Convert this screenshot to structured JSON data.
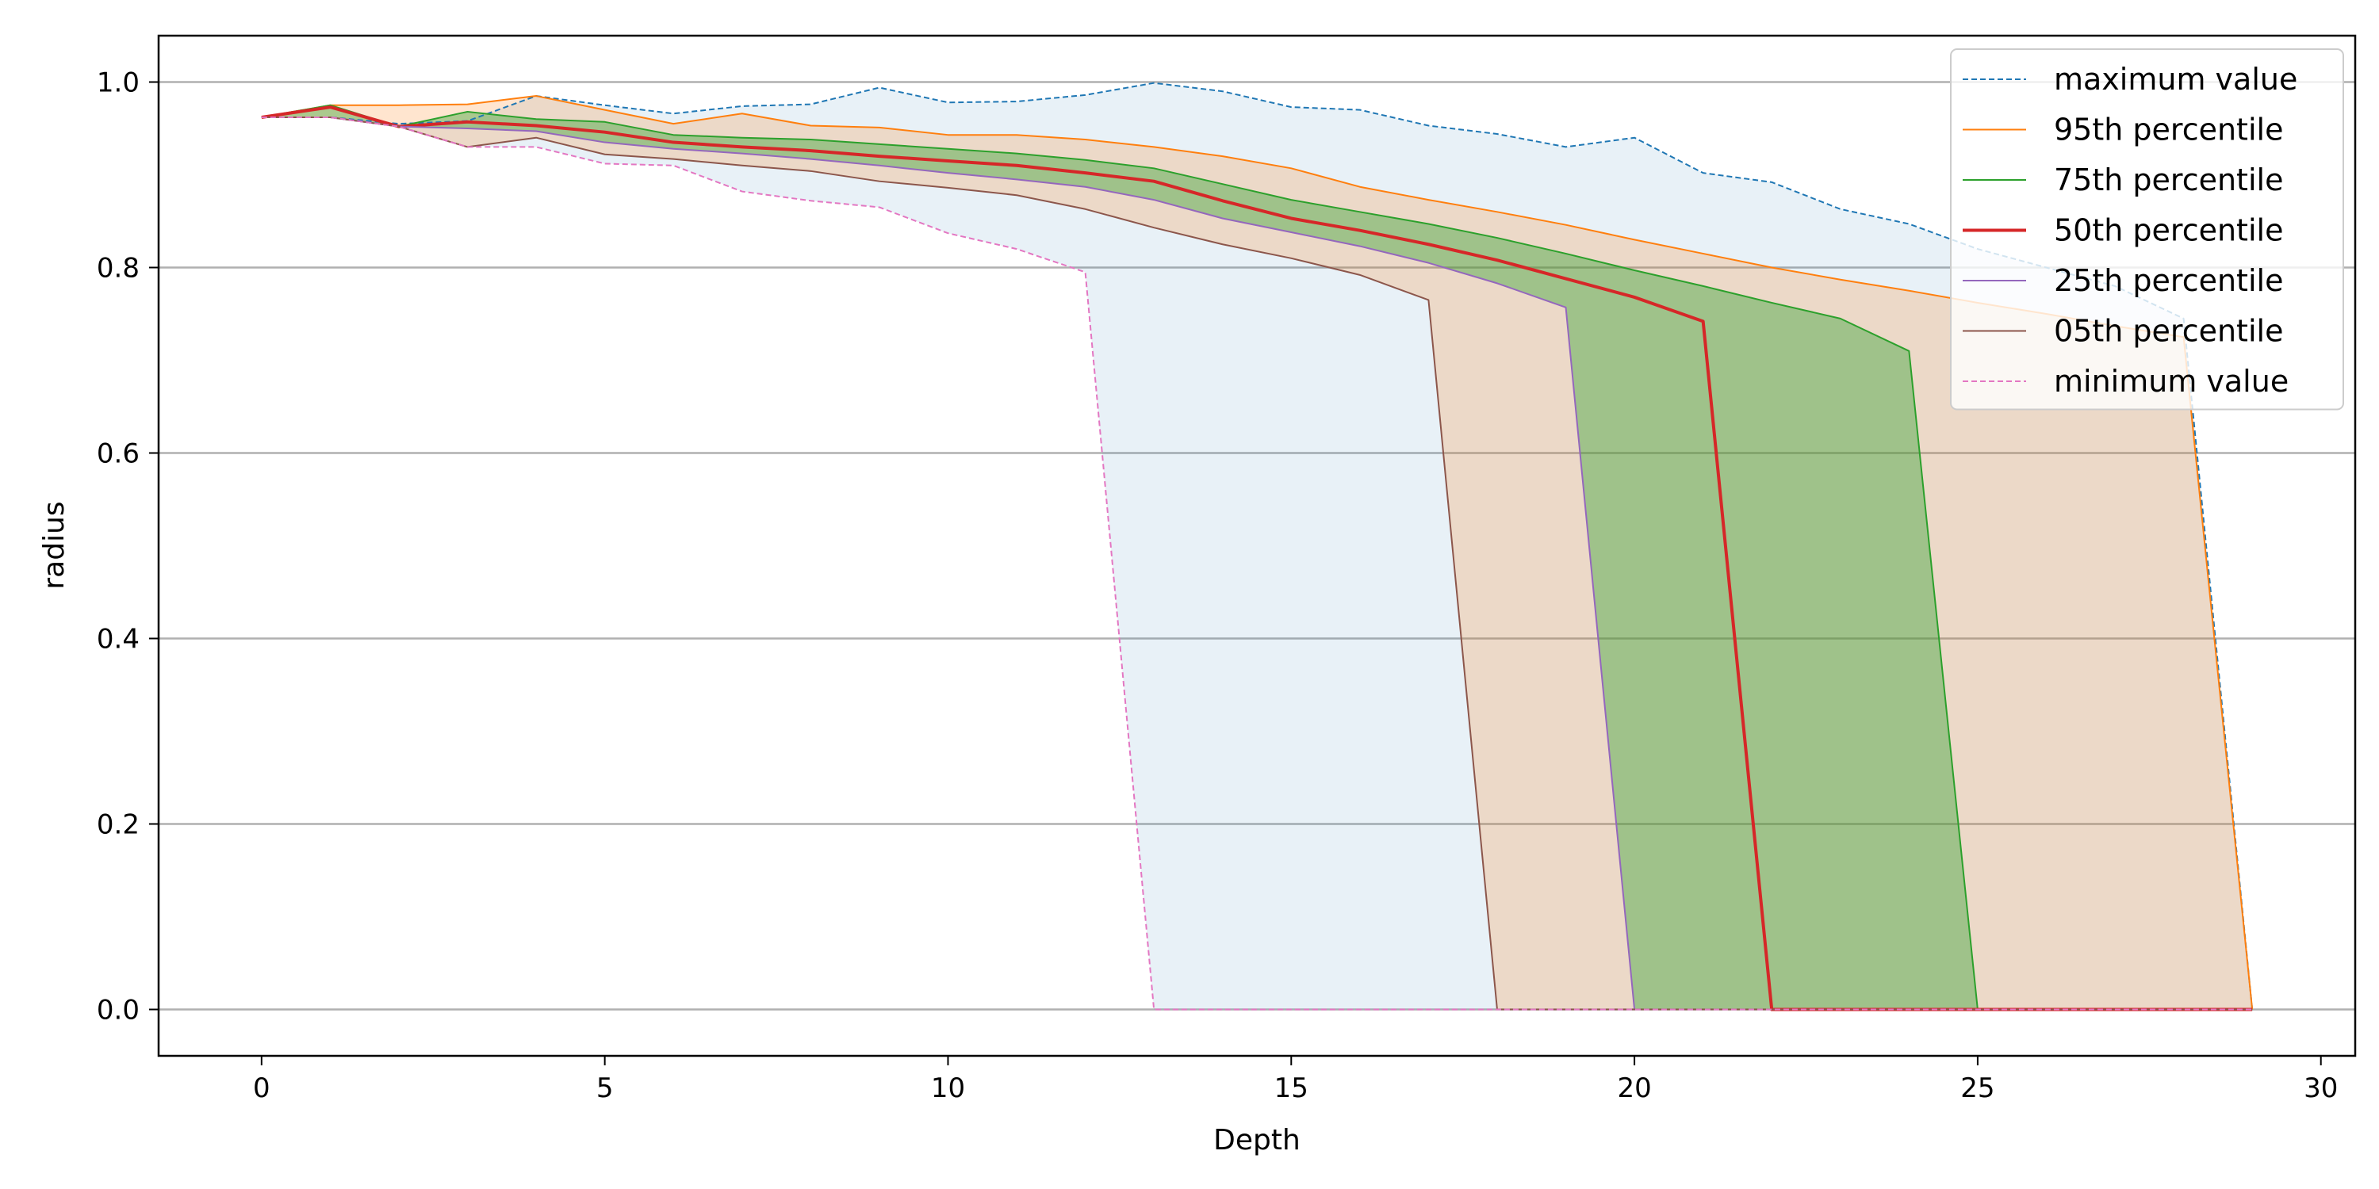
{
  "chart_data": {
    "type": "line",
    "xlabel": "Depth",
    "ylabel": "radius",
    "xlim": [
      -1.5,
      30.5
    ],
    "ylim": [
      -0.05,
      1.05
    ],
    "xticks": [
      0,
      5,
      10,
      15,
      20,
      25,
      30
    ],
    "yticks": [
      0.0,
      0.2,
      0.4,
      0.6,
      0.8,
      1.0
    ],
    "ytick_labels": [
      "0.0",
      "0.2",
      "0.4",
      "0.6",
      "0.8",
      "1.0"
    ],
    "grid": "horizontal",
    "legend_position": "top-right",
    "x": [
      0,
      1,
      2,
      3,
      4,
      5,
      6,
      7,
      8,
      9,
      10,
      11,
      12,
      13,
      14,
      15,
      16,
      17,
      18,
      19,
      20,
      21,
      22,
      23,
      24,
      25,
      26,
      27,
      28,
      29
    ],
    "series": [
      {
        "name": "maximum value",
        "color": "#1f77b4",
        "style": "dashed",
        "values": [
          0.962,
          0.962,
          0.955,
          0.958,
          0.985,
          0.975,
          0.966,
          0.974,
          0.976,
          0.994,
          0.978,
          0.979,
          0.986,
          0.999,
          0.99,
          0.973,
          0.97,
          0.953,
          0.944,
          0.93,
          0.94,
          0.902,
          0.892,
          0.863,
          0.847,
          0.82,
          0.8,
          0.78,
          0.745,
          0.0
        ]
      },
      {
        "name": "95th percentile",
        "color": "#ff7f0e",
        "style": "solid",
        "values": [
          0.962,
          0.975,
          0.975,
          0.976,
          0.985,
          0.97,
          0.955,
          0.966,
          0.953,
          0.951,
          0.943,
          0.943,
          0.938,
          0.93,
          0.92,
          0.907,
          0.887,
          0.873,
          0.86,
          0.846,
          0.83,
          0.815,
          0.8,
          0.787,
          0.775,
          0.762,
          0.75,
          0.737,
          0.725,
          0.0
        ]
      },
      {
        "name": "75th percentile",
        "color": "#2ca02c",
        "style": "solid",
        "values": [
          0.962,
          0.975,
          0.952,
          0.968,
          0.96,
          0.957,
          0.943,
          0.94,
          0.938,
          0.933,
          0.928,
          0.923,
          0.916,
          0.907,
          0.89,
          0.873,
          0.86,
          0.847,
          0.832,
          0.815,
          0.797,
          0.78,
          0.762,
          0.745,
          0.71,
          0.0,
          0.0,
          0.0,
          0.0,
          0.0
        ]
      },
      {
        "name": "50th percentile",
        "color": "#d62728",
        "style": "solid",
        "values": [
          0.962,
          0.973,
          0.952,
          0.957,
          0.953,
          0.946,
          0.935,
          0.93,
          0.926,
          0.92,
          0.915,
          0.91,
          0.902,
          0.893,
          0.872,
          0.853,
          0.84,
          0.825,
          0.808,
          0.788,
          0.768,
          0.742,
          0.0,
          0.0,
          0.0,
          0.0,
          0.0,
          0.0,
          0.0,
          0.0
        ]
      },
      {
        "name": "25th percentile",
        "color": "#9467bd",
        "style": "solid",
        "values": [
          0.962,
          0.962,
          0.952,
          0.95,
          0.947,
          0.935,
          0.928,
          0.923,
          0.917,
          0.91,
          0.902,
          0.895,
          0.887,
          0.873,
          0.853,
          0.838,
          0.823,
          0.805,
          0.783,
          0.757,
          0.0,
          0.0,
          0.0,
          0.0,
          0.0,
          0.0,
          0.0,
          0.0,
          0.0,
          0.0
        ]
      },
      {
        "name": "05th percentile",
        "color": "#8c564b",
        "style": "solid",
        "values": [
          0.962,
          0.962,
          0.952,
          0.93,
          0.94,
          0.922,
          0.917,
          0.91,
          0.904,
          0.893,
          0.886,
          0.878,
          0.863,
          0.843,
          0.825,
          0.81,
          0.792,
          0.765,
          0.0,
          0.0,
          0.0,
          0.0,
          0.0,
          0.0,
          0.0,
          0.0,
          0.0,
          0.0,
          0.0,
          0.0
        ]
      },
      {
        "name": "minimum value",
        "color": "#e377c2",
        "style": "dashed",
        "values": [
          0.962,
          0.962,
          0.952,
          0.93,
          0.93,
          0.912,
          0.91,
          0.882,
          0.872,
          0.865,
          0.837,
          0.82,
          0.795,
          0.0,
          0.0,
          0.0,
          0.0,
          0.0,
          0.0,
          0.0,
          0.0,
          0.0,
          0.0,
          0.0,
          0.0,
          0.0,
          0.0,
          0.0,
          0.0,
          0.0
        ]
      }
    ],
    "bands": [
      {
        "lower": "minimum value",
        "upper": "maximum value",
        "color": "#1f77b4",
        "opacity": 0.1
      },
      {
        "lower": "05th percentile",
        "upper": "95th percentile",
        "color": "#ff7f0e",
        "opacity": 0.2
      },
      {
        "lower": "25th percentile",
        "upper": "75th percentile",
        "color": "#2ca02c",
        "opacity": 0.4
      }
    ]
  }
}
